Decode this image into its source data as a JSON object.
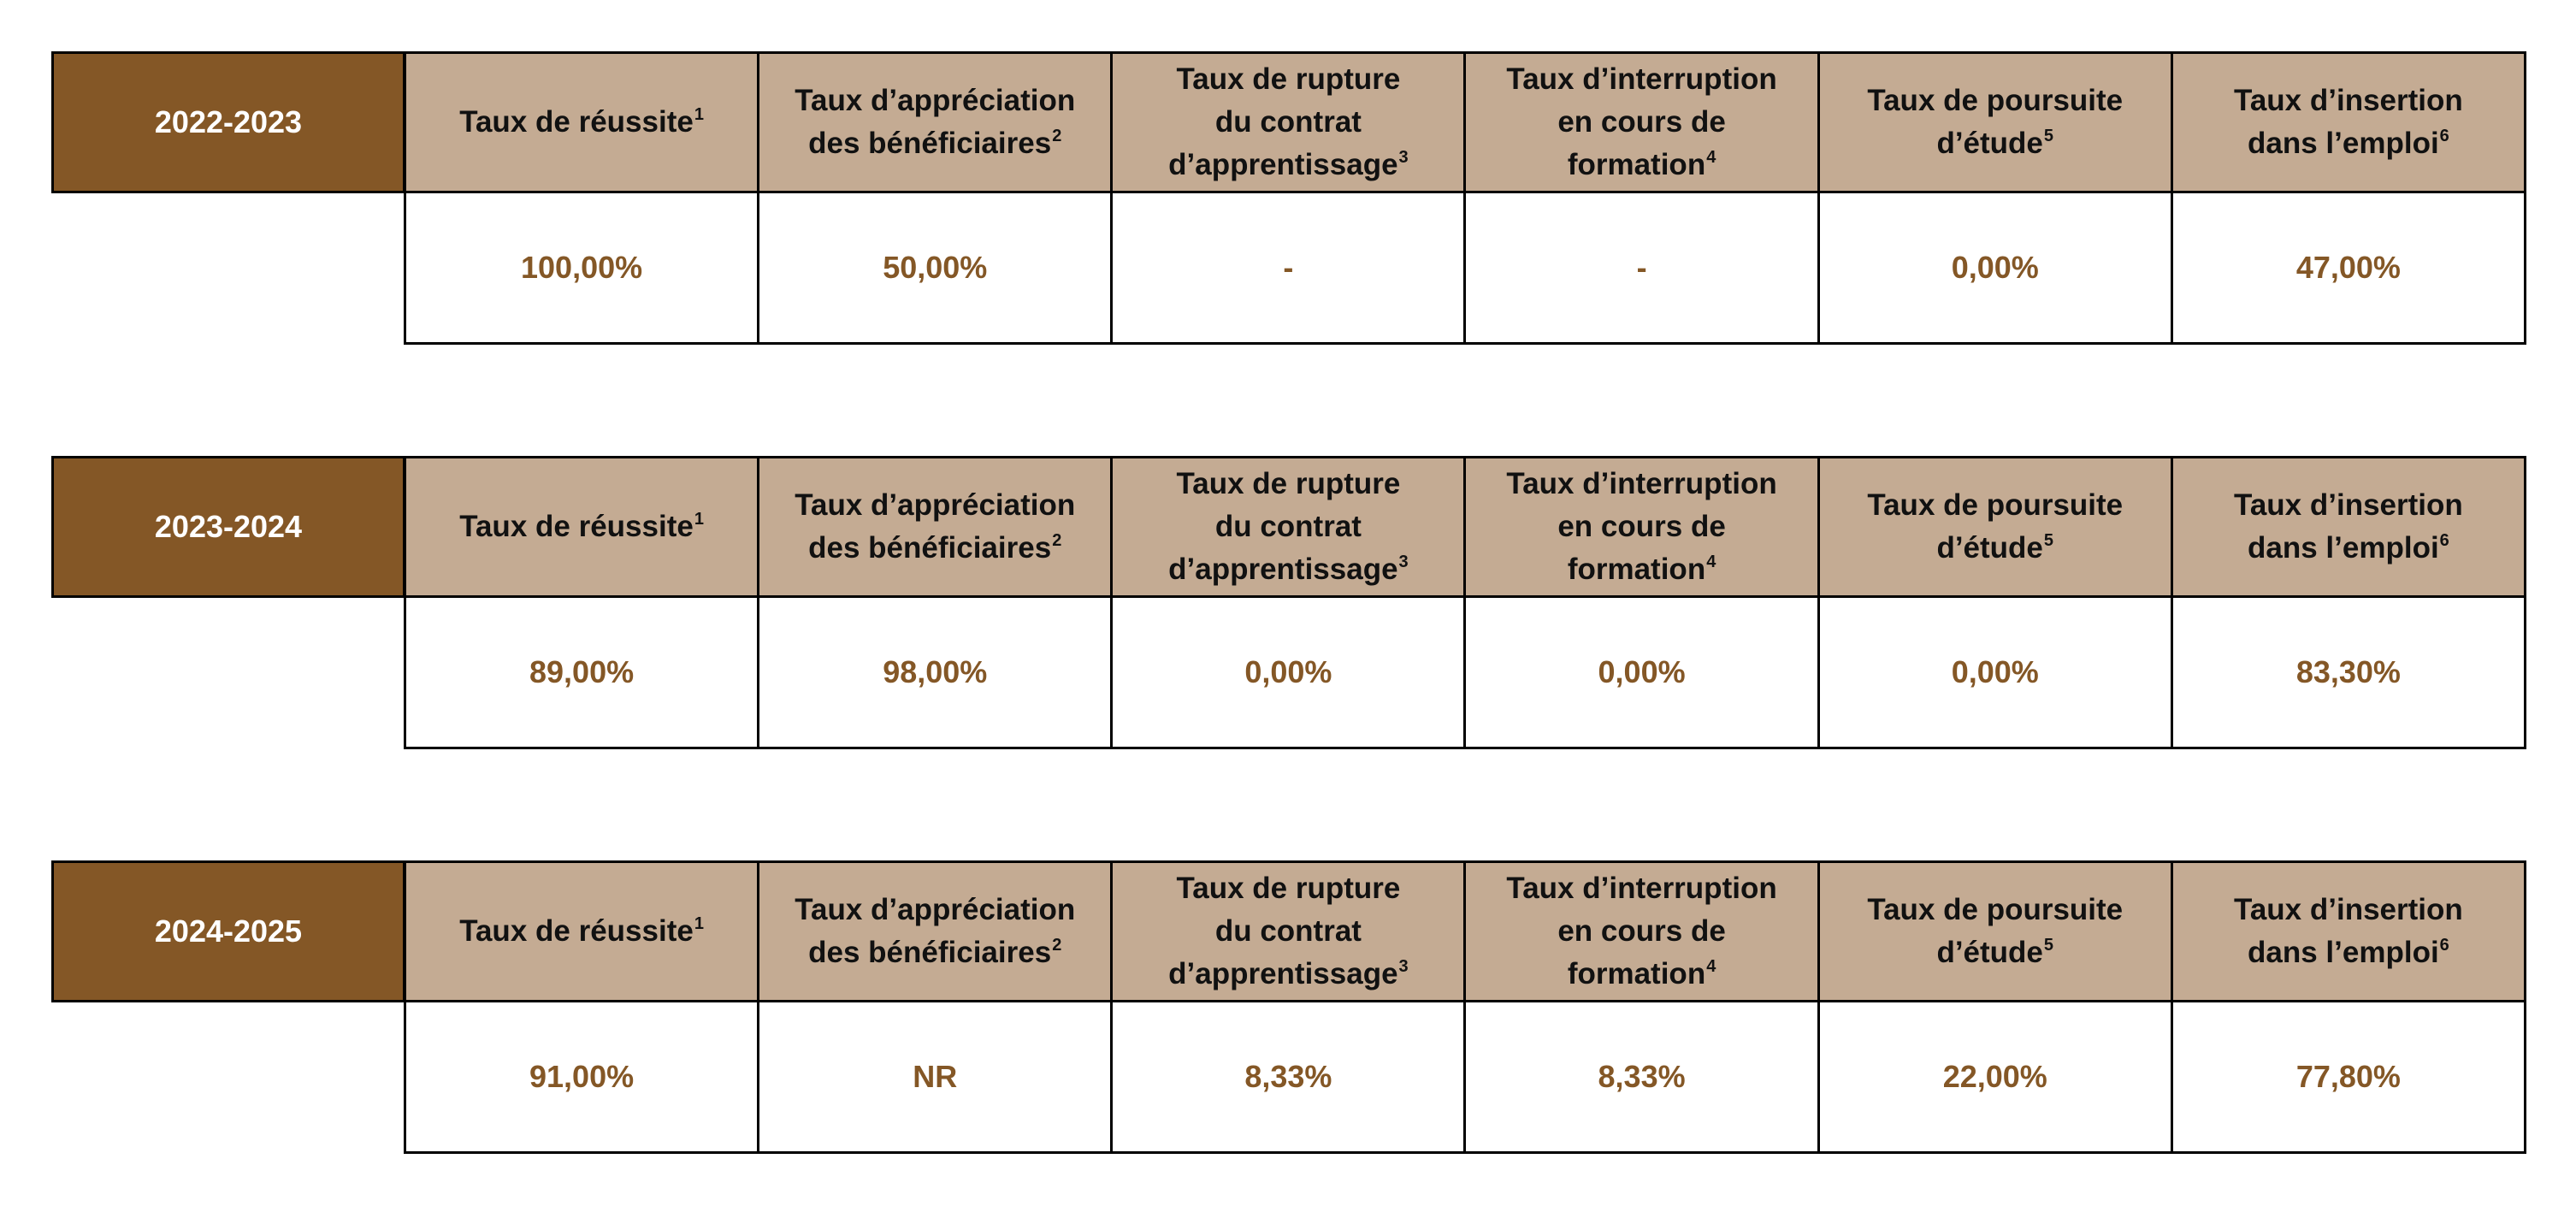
{
  "colors": {
    "year_cell_bg": "#845726",
    "header_bg": "#c4ab93",
    "value_text": "#845726",
    "border": "#000000"
  },
  "headers": [
    {
      "lines": [
        "Taux de réussite"
      ],
      "note": "1"
    },
    {
      "lines": [
        "Taux d’appréciation",
        "des bénéficiaires"
      ],
      "note": "2"
    },
    {
      "lines": [
        "Taux de rupture",
        "du contrat",
        "d’apprentissage"
      ],
      "note": "3"
    },
    {
      "lines": [
        "Taux d’interruption",
        "en cours de",
        "formation"
      ],
      "note": "4"
    },
    {
      "lines": [
        "Taux de poursuite",
        "d’étude"
      ],
      "note": "5"
    },
    {
      "lines": [
        "Taux d’insertion",
        "dans l’emploi"
      ],
      "note": "6"
    }
  ],
  "tables": [
    {
      "year": "2022-2023",
      "values": [
        "100,00%",
        "50,00%",
        "-",
        "-",
        "0,00%",
        "47,00%"
      ]
    },
    {
      "year": "2023-2024",
      "values": [
        "89,00%",
        "98,00%",
        "0,00%",
        "0,00%",
        "0,00%",
        "83,30%"
      ]
    },
    {
      "year": "2024-2025",
      "values": [
        "91,00%",
        "NR",
        "8,33%",
        "8,33%",
        "22,00%",
        "77,80%"
      ]
    }
  ]
}
